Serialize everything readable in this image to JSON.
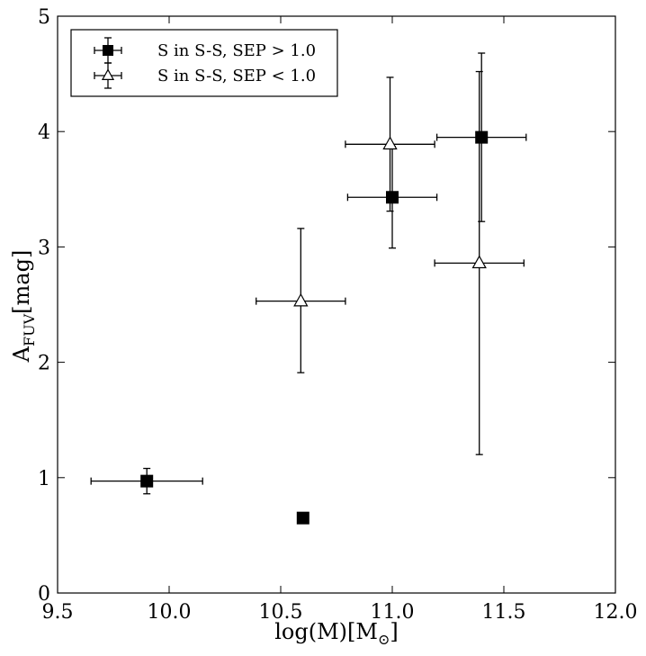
{
  "chart_data": {
    "type": "scatter",
    "xlabel": "log(M)[M",
    "xlabel_symbol": "⊙",
    "xlabel_close": "]",
    "ylabel": "A",
    "ylabel_sub": "FUV",
    "ylabel_rest": "[mag]",
    "xlim": [
      9.5,
      12.0
    ],
    "ylim": [
      0,
      5
    ],
    "xticks": [
      "9.5",
      "10.0",
      "10.5",
      "11.0",
      "11.5",
      "12.0"
    ],
    "yticks": [
      "0",
      "1",
      "2",
      "3",
      "4",
      "5"
    ],
    "grid": false,
    "legend_position": "upper-left",
    "series": [
      {
        "name": "S in S-S, SEP > 1.0",
        "marker": "filled-square",
        "color": "#000000",
        "points": [
          {
            "x": 9.9,
            "y": 0.97,
            "xerr": 0.25,
            "yerr_low": 0.11,
            "yerr_high": 0.11
          },
          {
            "x": 10.6,
            "y": 0.65,
            "xerr": 0,
            "yerr_low": 0,
            "yerr_high": 0
          },
          {
            "x": 11.0,
            "y": 3.43,
            "xerr": 0.2,
            "yerr_low": 0.44,
            "yerr_high": 0.44
          },
          {
            "x": 11.4,
            "y": 3.95,
            "xerr": 0.2,
            "yerr_low": 0.73,
            "yerr_high": 0.73
          }
        ]
      },
      {
        "name": "S in S-S, SEP < 1.0",
        "marker": "open-triangle",
        "color": "#000000",
        "points": [
          {
            "x": 10.59,
            "y": 2.53,
            "xerr": 0.2,
            "yerr_low": 0.62,
            "yerr_high": 0.63
          },
          {
            "x": 10.99,
            "y": 3.89,
            "xerr": 0.2,
            "yerr_low": 0.58,
            "yerr_high": 0.58
          },
          {
            "x": 11.39,
            "y": 2.86,
            "xerr": 0.2,
            "yerr_low": 1.66,
            "yerr_high": 1.66
          }
        ]
      }
    ]
  }
}
